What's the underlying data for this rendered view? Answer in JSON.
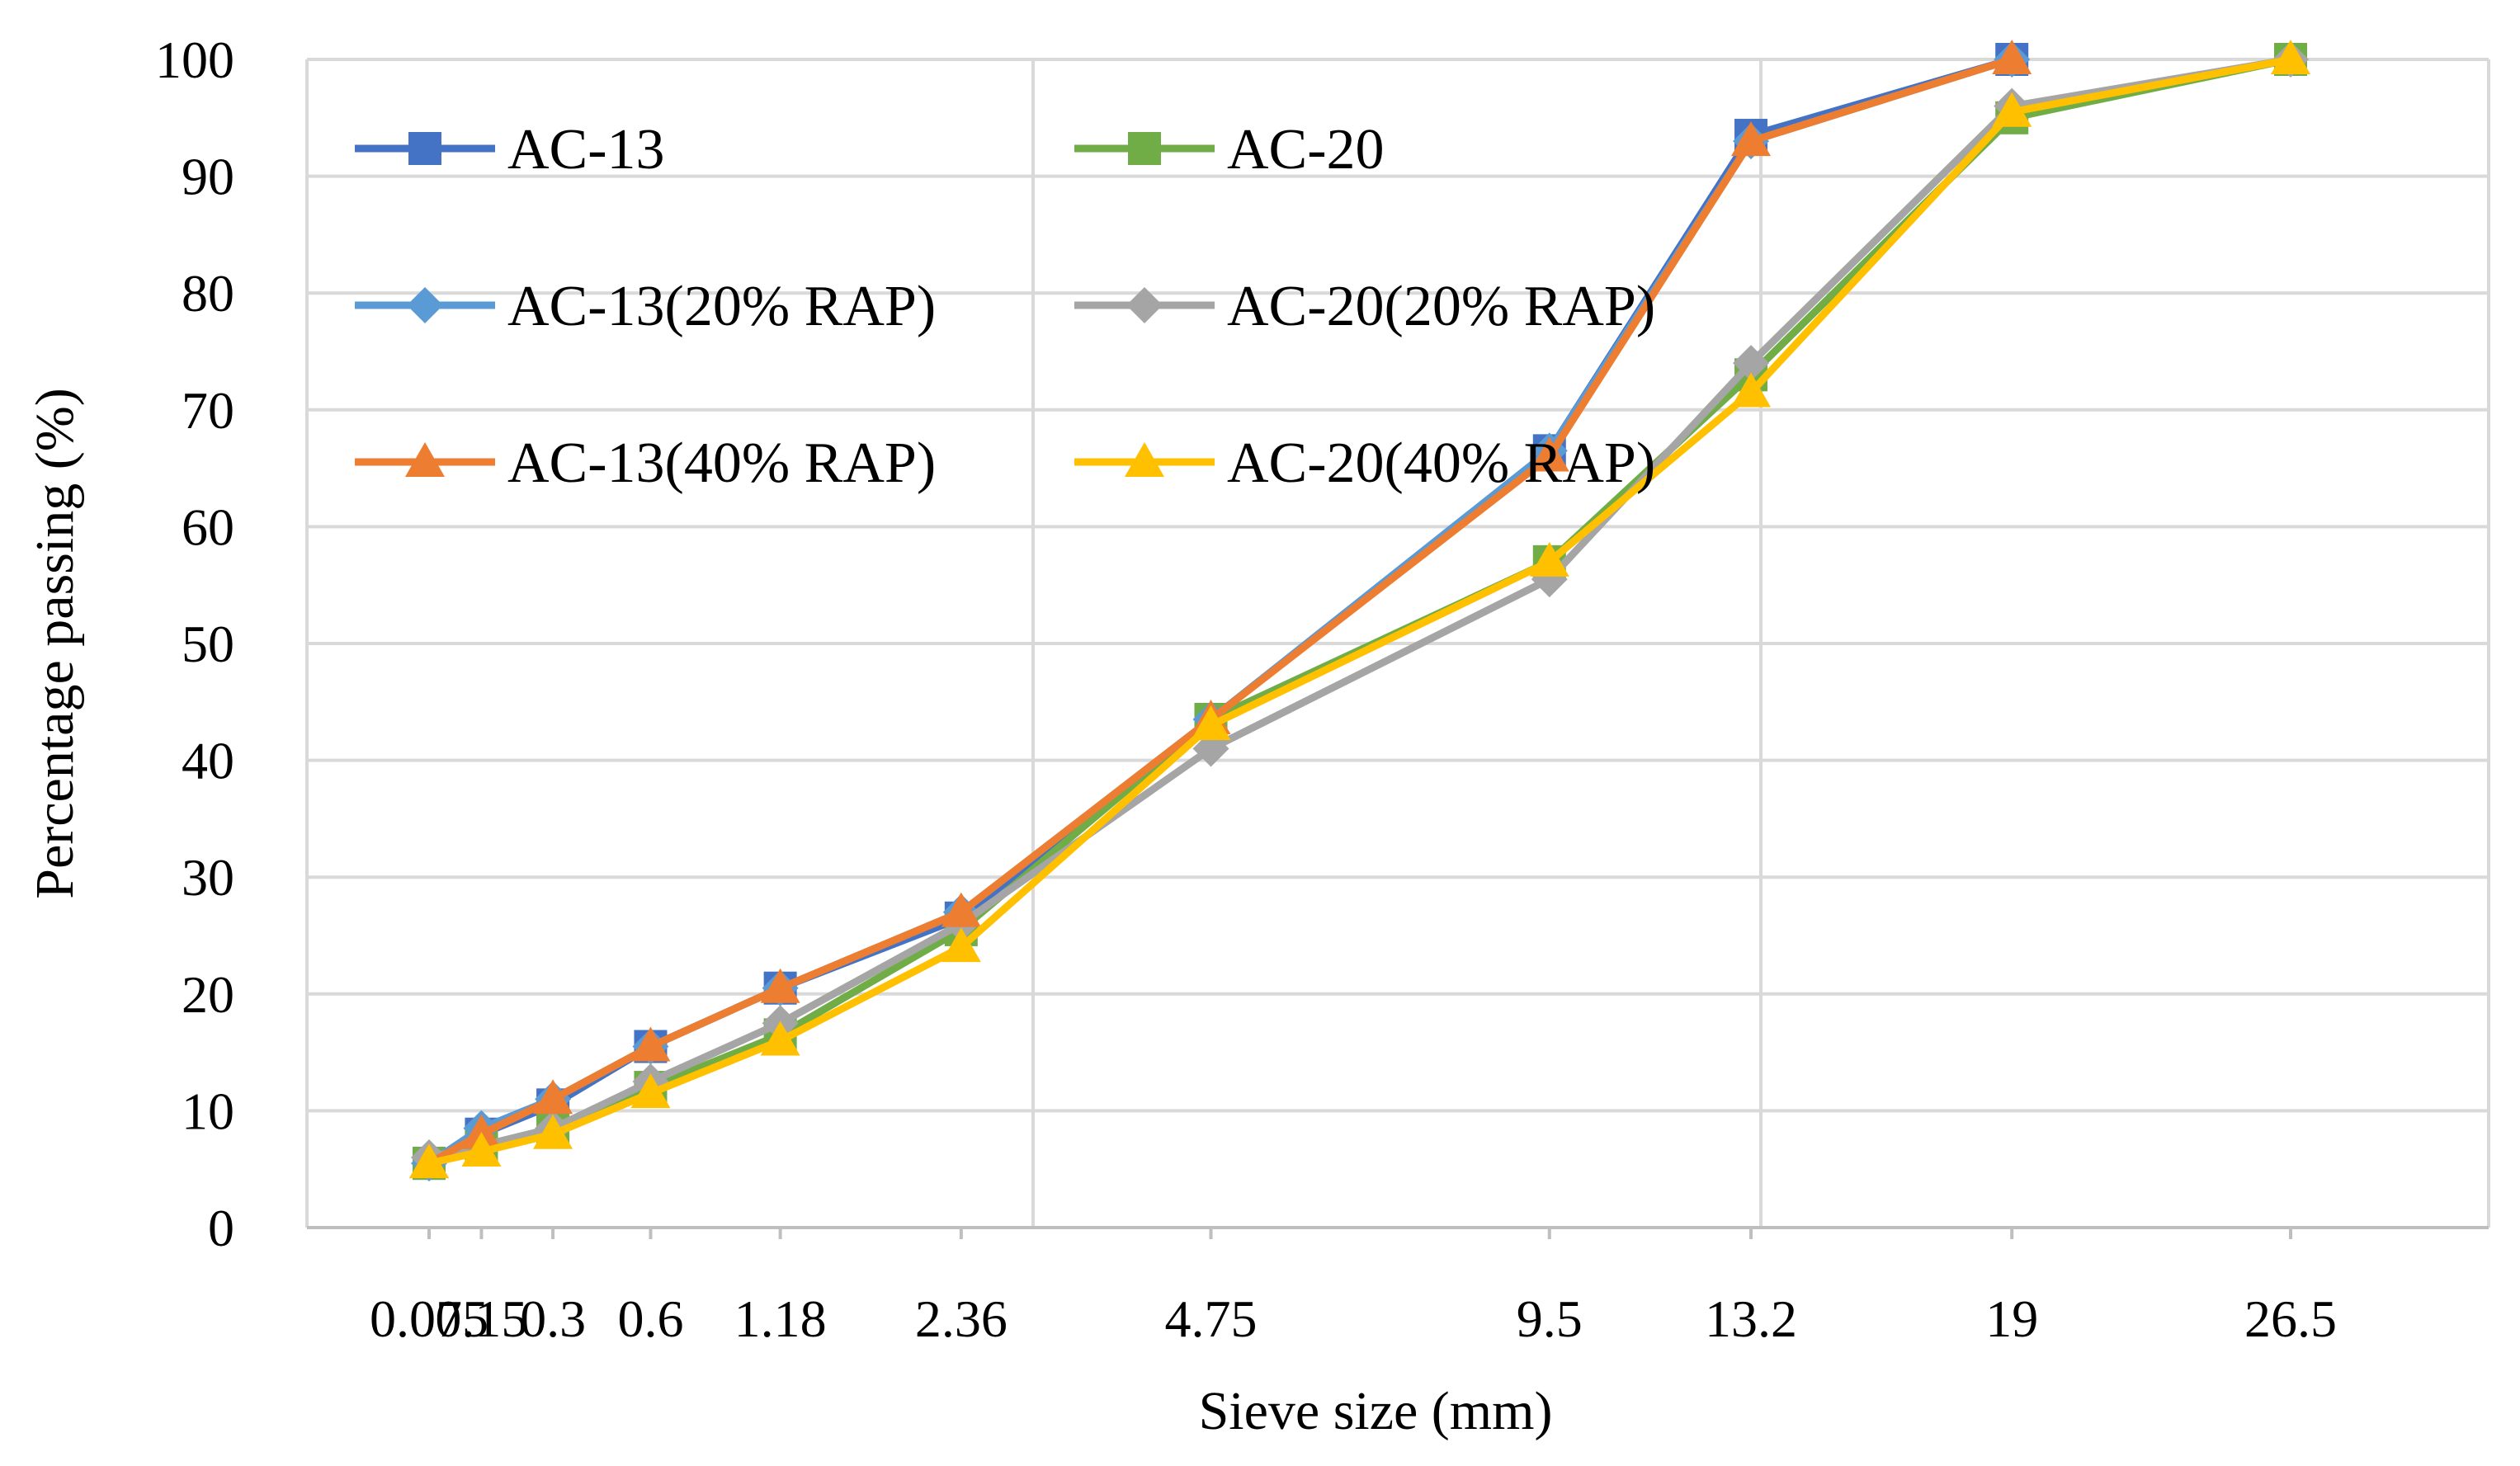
{
  "chart_data": {
    "type": "line",
    "title": "",
    "xlabel": "Sieve size (mm)",
    "ylabel": "Percentage passing (%)",
    "ylim": [
      0,
      100
    ],
    "yticks": [
      "0",
      "10",
      "20",
      "30",
      "40",
      "50",
      "60",
      "70",
      "80",
      "90",
      "100"
    ],
    "x_scale": "power-0.45",
    "x_tick_labels": [
      "0.075",
      "0.15",
      "0.3",
      "0.6",
      "1.18",
      "2.36",
      "4.75",
      "9.5",
      "13.2",
      "19",
      "26.5"
    ],
    "x": [
      0.075,
      0.15,
      0.3,
      0.6,
      1.18,
      2.36,
      4.75,
      9.5,
      13.2,
      19,
      26.5
    ],
    "grid": true,
    "legend_position": "top-left, two columns",
    "series": [
      {
        "name": "AC-13",
        "color": "#4472C4",
        "marker": "square",
        "values": [
          5.5,
          8.0,
          10.5,
          15.5,
          20.5,
          26.5,
          43.5,
          66.5,
          93.5,
          100,
          null
        ]
      },
      {
        "name": "AC-20",
        "color": "#70AD47",
        "marker": "square",
        "values": [
          5.5,
          7.0,
          8.5,
          12.0,
          16.5,
          25.5,
          43.5,
          57.0,
          73.0,
          95.0,
          100
        ]
      },
      {
        "name": "AC-13(20% RAP)",
        "color": "#5B9BD5",
        "marker": "diamond",
        "values": [
          5.5,
          8.5,
          11.0,
          15.5,
          20.5,
          27.0,
          43.5,
          66.5,
          93.0,
          100,
          null
        ]
      },
      {
        "name": "AC-20(20% RAP)",
        "color": "#A5A5A5",
        "marker": "diamond",
        "values": [
          6.0,
          7.0,
          8.5,
          12.5,
          17.5,
          26.0,
          41.0,
          55.5,
          74.0,
          96.0,
          100
        ]
      },
      {
        "name": "AC-13(40% RAP)",
        "color": "#ED7D31",
        "marker": "triangle",
        "values": [
          5.5,
          8.0,
          11.0,
          15.5,
          20.5,
          27.0,
          43.5,
          66.0,
          93.0,
          100,
          null
        ]
      },
      {
        "name": "AC-20(40% RAP)",
        "color": "#FFC000",
        "marker": "triangle",
        "values": [
          5.5,
          6.5,
          8.0,
          11.5,
          16.0,
          24.0,
          43.0,
          57.0,
          71.5,
          95.5,
          100
        ]
      }
    ]
  }
}
